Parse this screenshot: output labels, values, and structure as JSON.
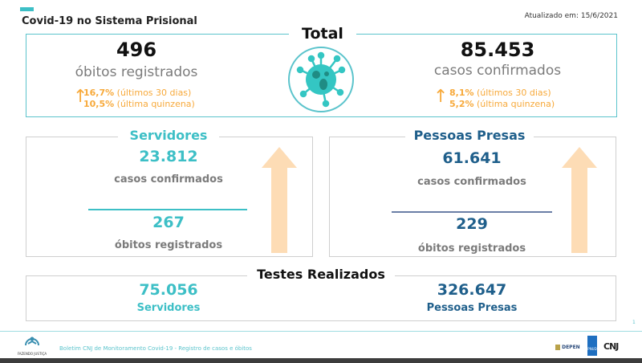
{
  "header": {
    "title": "Covid-19 no Sistema Prisional",
    "updated": "Atualizado em: 15/6/2021"
  },
  "total": {
    "label": "Total",
    "deaths": {
      "value": "496",
      "label": "óbitos registrados",
      "change30": "16,7%",
      "change30_label": "(últimos 30 dias)",
      "change15": "10,5%",
      "change15_label": "(última quinzena)"
    },
    "cases": {
      "value": "85.453",
      "label": "casos confirmados",
      "change30": "8,1%",
      "change30_label": "(últimos 30 dias)",
      "change15": "5,2%",
      "change15_label": "(última quinzena)"
    }
  },
  "servidores": {
    "title": "Servidores",
    "cases": "23.812",
    "cases_label": "casos confirmados",
    "deaths": "267",
    "deaths_label": "óbitos registrados"
  },
  "presos": {
    "title": "Pessoas Presas",
    "cases": "61.641",
    "cases_label": "casos confirmados",
    "deaths": "229",
    "deaths_label": "óbitos registrados"
  },
  "testes": {
    "title": "Testes Realizados",
    "servidores_value": "75.056",
    "servidores_label": "Servidores",
    "presos_value": "326.647",
    "presos_label": "Pessoas Presas"
  },
  "footer": {
    "logo_text": "FAZENDO JUSTIÇA",
    "text": "Boletim CNJ de Monitoramento Covid-19 - Registro de casos e óbitos",
    "depen": "DEPEN",
    "pnud": "PNUD",
    "cnj": "CNJ",
    "page": "1"
  },
  "colors": {
    "teal": "#3dbfc6",
    "navy": "#1f5f8b",
    "orange": "#f7a93a"
  }
}
